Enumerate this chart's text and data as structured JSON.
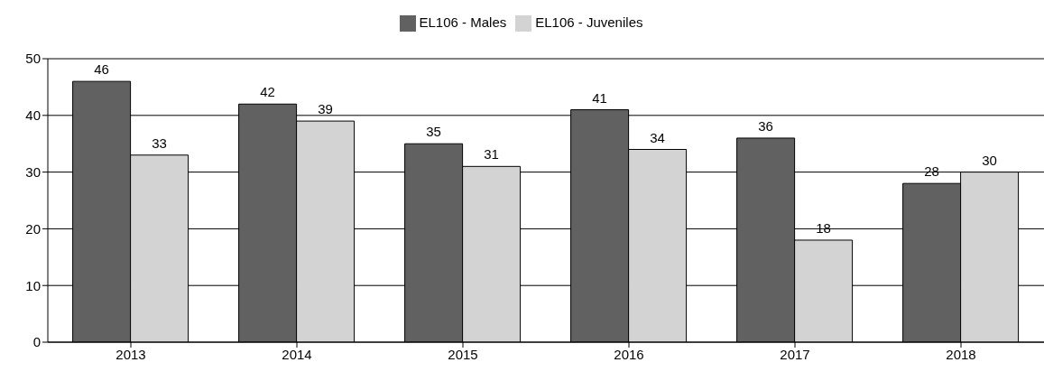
{
  "chart_data": {
    "type": "bar",
    "categories": [
      "2013",
      "2014",
      "2015",
      "2016",
      "2017",
      "2018"
    ],
    "series": [
      {
        "name": "EL106 - Males",
        "color": "#616161",
        "values": [
          46,
          42,
          35,
          41,
          36,
          28
        ]
      },
      {
        "name": "EL106 - Juveniles",
        "color": "#d3d3d3",
        "values": [
          33,
          39,
          31,
          34,
          18,
          30
        ]
      }
    ],
    "ylim": [
      0,
      50
    ],
    "yticks": [
      0,
      10,
      20,
      30,
      40,
      50
    ],
    "grid": "y",
    "legend": "top",
    "data_labels": true
  }
}
